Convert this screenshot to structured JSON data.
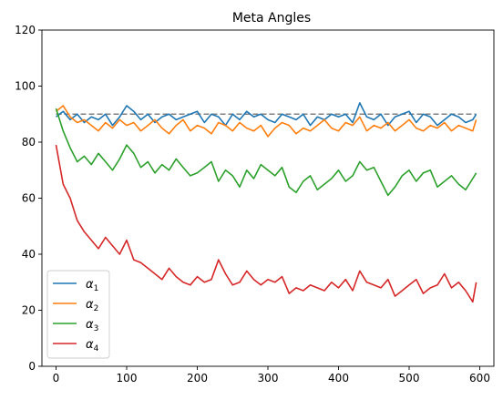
{
  "chart_data": {
    "type": "line",
    "title": "Meta Angles",
    "xlabel": "",
    "ylabel": "",
    "xlim": [
      -20,
      620
    ],
    "ylim": [
      0,
      120
    ],
    "x_ticks": [
      0,
      100,
      200,
      300,
      400,
      500,
      600
    ],
    "y_ticks": [
      0,
      20,
      40,
      60,
      80,
      100,
      120
    ],
    "grid": false,
    "legend": "lower-left",
    "reference_line": {
      "y": 90,
      "x_range": [
        0,
        595
      ],
      "style": "dashed",
      "color": "#808080"
    },
    "series": [
      {
        "name": "α",
        "subscript": "1",
        "color": "#1f77b4",
        "x": [
          0,
          10,
          20,
          30,
          40,
          50,
          60,
          70,
          80,
          90,
          100,
          110,
          120,
          130,
          140,
          150,
          160,
          170,
          180,
          190,
          200,
          210,
          220,
          230,
          240,
          250,
          260,
          270,
          280,
          290,
          300,
          310,
          320,
          330,
          340,
          350,
          360,
          370,
          380,
          390,
          400,
          410,
          420,
          430,
          440,
          450,
          460,
          470,
          480,
          490,
          500,
          510,
          520,
          530,
          540,
          550,
          560,
          570,
          580,
          590,
          595
        ],
        "values": [
          89,
          91,
          88,
          90,
          87,
          89,
          88,
          90,
          86,
          89,
          93,
          91,
          88,
          90,
          87,
          89,
          90,
          88,
          89,
          90,
          91,
          87,
          90,
          89,
          86,
          90,
          88,
          91,
          89,
          90,
          88,
          87,
          90,
          89,
          88,
          90,
          86,
          89,
          88,
          90,
          89,
          90,
          87,
          94,
          89,
          88,
          90,
          86,
          89,
          90,
          91,
          87,
          90,
          89,
          86,
          88,
          90,
          89,
          87,
          88,
          90
        ]
      },
      {
        "name": "α",
        "subscript": "2",
        "color": "#ff7f0e",
        "x": [
          0,
          10,
          20,
          30,
          40,
          50,
          60,
          70,
          80,
          90,
          100,
          110,
          120,
          130,
          140,
          150,
          160,
          170,
          180,
          190,
          200,
          210,
          220,
          230,
          240,
          250,
          260,
          270,
          280,
          290,
          300,
          310,
          320,
          330,
          340,
          350,
          360,
          370,
          380,
          390,
          400,
          410,
          420,
          430,
          440,
          450,
          460,
          470,
          480,
          490,
          500,
          510,
          520,
          530,
          540,
          550,
          560,
          570,
          580,
          590,
          595
        ],
        "values": [
          91,
          93,
          89,
          87,
          88,
          86,
          84,
          87,
          85,
          88,
          86,
          87,
          84,
          86,
          88,
          85,
          83,
          86,
          88,
          84,
          86,
          85,
          83,
          87,
          86,
          84,
          87,
          85,
          84,
          86,
          82,
          85,
          87,
          86,
          83,
          85,
          84,
          86,
          88,
          85,
          84,
          87,
          86,
          89,
          84,
          86,
          85,
          87,
          84,
          86,
          88,
          85,
          84,
          86,
          85,
          87,
          84,
          86,
          85,
          84,
          88
        ]
      },
      {
        "name": "α",
        "subscript": "3",
        "color": "#2ca02c",
        "x": [
          0,
          10,
          20,
          30,
          40,
          50,
          60,
          70,
          80,
          90,
          100,
          110,
          120,
          130,
          140,
          150,
          160,
          170,
          180,
          190,
          200,
          210,
          220,
          230,
          240,
          250,
          260,
          270,
          280,
          290,
          300,
          310,
          320,
          330,
          340,
          350,
          360,
          370,
          380,
          390,
          400,
          410,
          420,
          430,
          440,
          450,
          460,
          470,
          480,
          490,
          500,
          510,
          520,
          530,
          540,
          550,
          560,
          570,
          580,
          590,
          595
        ],
        "values": [
          92,
          84,
          78,
          73,
          75,
          72,
          76,
          73,
          70,
          74,
          79,
          76,
          71,
          73,
          69,
          72,
          70,
          74,
          71,
          68,
          69,
          71,
          73,
          66,
          70,
          68,
          64,
          70,
          67,
          72,
          70,
          68,
          71,
          64,
          62,
          66,
          68,
          63,
          65,
          67,
          70,
          66,
          68,
          73,
          70,
          71,
          66,
          61,
          64,
          68,
          70,
          66,
          69,
          70,
          64,
          66,
          68,
          65,
          63,
          67,
          69
        ]
      },
      {
        "name": "α",
        "subscript": "4",
        "color": "#d62728",
        "x": [
          0,
          10,
          20,
          30,
          40,
          50,
          60,
          70,
          80,
          90,
          100,
          110,
          120,
          130,
          140,
          150,
          160,
          170,
          180,
          190,
          200,
          210,
          220,
          230,
          240,
          250,
          260,
          270,
          280,
          290,
          300,
          310,
          320,
          330,
          340,
          350,
          360,
          370,
          380,
          390,
          400,
          410,
          420,
          430,
          440,
          450,
          460,
          470,
          480,
          490,
          500,
          510,
          520,
          530,
          540,
          550,
          560,
          570,
          580,
          590,
          595
        ],
        "values": [
          79,
          65,
          60,
          52,
          48,
          45,
          42,
          46,
          43,
          40,
          45,
          38,
          37,
          35,
          33,
          31,
          35,
          32,
          30,
          29,
          32,
          30,
          31,
          38,
          33,
          29,
          30,
          34,
          31,
          29,
          31,
          30,
          32,
          26,
          28,
          27,
          29,
          28,
          27,
          30,
          28,
          31,
          27,
          34,
          30,
          29,
          28,
          31,
          25,
          27,
          29,
          31,
          26,
          28,
          29,
          33,
          28,
          30,
          27,
          23,
          30
        ]
      }
    ]
  }
}
